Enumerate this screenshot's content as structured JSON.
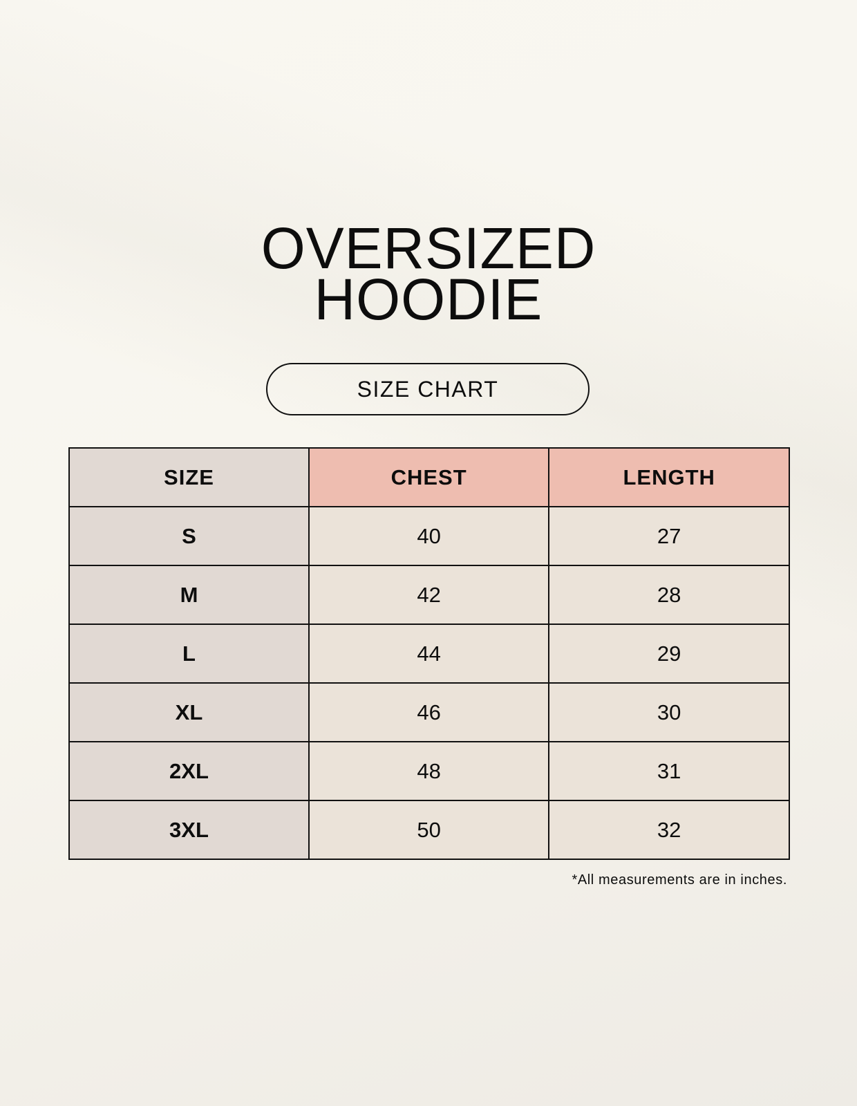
{
  "title": {
    "line1": "OVERSIZED",
    "line2": "HOODIE"
  },
  "subtitle": "SIZE CHART",
  "table": {
    "headers": [
      "SIZE",
      "CHEST",
      "LENGTH"
    ],
    "rows": [
      [
        "S",
        "40",
        "27"
      ],
      [
        "M",
        "42",
        "28"
      ],
      [
        "L",
        "44",
        "29"
      ],
      [
        "XL",
        "46",
        "30"
      ],
      [
        "2XL",
        "48",
        "31"
      ],
      [
        "3XL",
        "50",
        "32"
      ]
    ]
  },
  "footnote": "*All measurements are in inches.",
  "colors": {
    "header_accent": "#eebdb0",
    "size_column": "#e1d9d3",
    "value_cells": "#ebe3d9",
    "background": "#f8f6ef"
  }
}
